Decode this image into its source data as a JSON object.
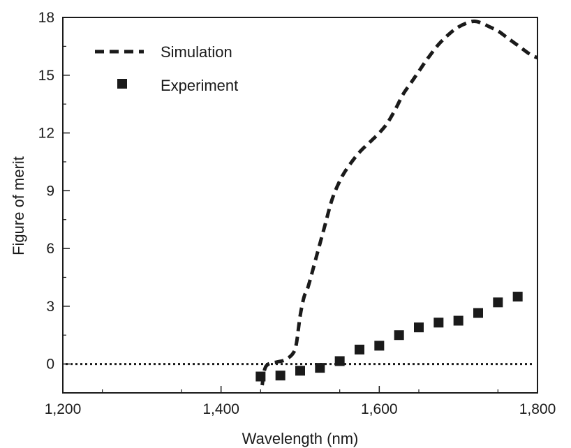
{
  "chart_data": {
    "type": "line",
    "title": "",
    "xlabel": "Wavelength (nm)",
    "ylabel": "Figure of merit",
    "xlim": [
      1200,
      1800
    ],
    "ylim": [
      -1.5,
      18
    ],
    "x_ticks": [
      1200,
      1400,
      1600,
      1800
    ],
    "x_tick_labels": [
      "1,200",
      "1,400",
      "1,600",
      "1,800"
    ],
    "y_ticks": [
      0,
      3,
      6,
      9,
      12,
      15,
      18
    ],
    "y_tick_labels": [
      "0",
      "3",
      "6",
      "9",
      "12",
      "15",
      "18"
    ],
    "grid": false,
    "legend": {
      "position": "top-left"
    },
    "reference_line": {
      "y": 0,
      "style": "dotted"
    },
    "series": [
      {
        "name": "Simulation",
        "kind": "line",
        "style": "dashed",
        "color": "#1a1a1a",
        "x": [
          1452,
          1455,
          1460,
          1470,
          1480,
          1490,
          1495,
          1500,
          1505,
          1510,
          1520,
          1530,
          1540,
          1550,
          1560,
          1575,
          1590,
          1600,
          1610,
          1620,
          1630,
          1640,
          1650,
          1660,
          1675,
          1690,
          1700,
          1710,
          1720,
          1730,
          1740,
          1750,
          1760,
          1770,
          1780,
          1790,
          1800
        ],
        "y": [
          -1.1,
          -0.3,
          0.0,
          0.1,
          0.2,
          0.5,
          1.0,
          2.5,
          3.5,
          4.0,
          5.5,
          7.0,
          8.5,
          9.5,
          10.2,
          11.0,
          11.6,
          12.0,
          12.5,
          13.2,
          14.0,
          14.6,
          15.2,
          15.8,
          16.6,
          17.2,
          17.5,
          17.7,
          17.8,
          17.7,
          17.5,
          17.3,
          17.0,
          16.7,
          16.4,
          16.1,
          15.9
        ]
      },
      {
        "name": "Experiment",
        "kind": "scatter",
        "marker": "square",
        "color": "#1a1a1a",
        "x": [
          1450,
          1475,
          1500,
          1525,
          1550,
          1575,
          1600,
          1625,
          1650,
          1675,
          1700,
          1725,
          1750,
          1775
        ],
        "y": [
          -0.65,
          -0.6,
          -0.35,
          -0.2,
          0.15,
          0.75,
          0.95,
          1.5,
          1.9,
          2.15,
          2.25,
          2.65,
          3.2,
          3.5
        ]
      }
    ]
  }
}
